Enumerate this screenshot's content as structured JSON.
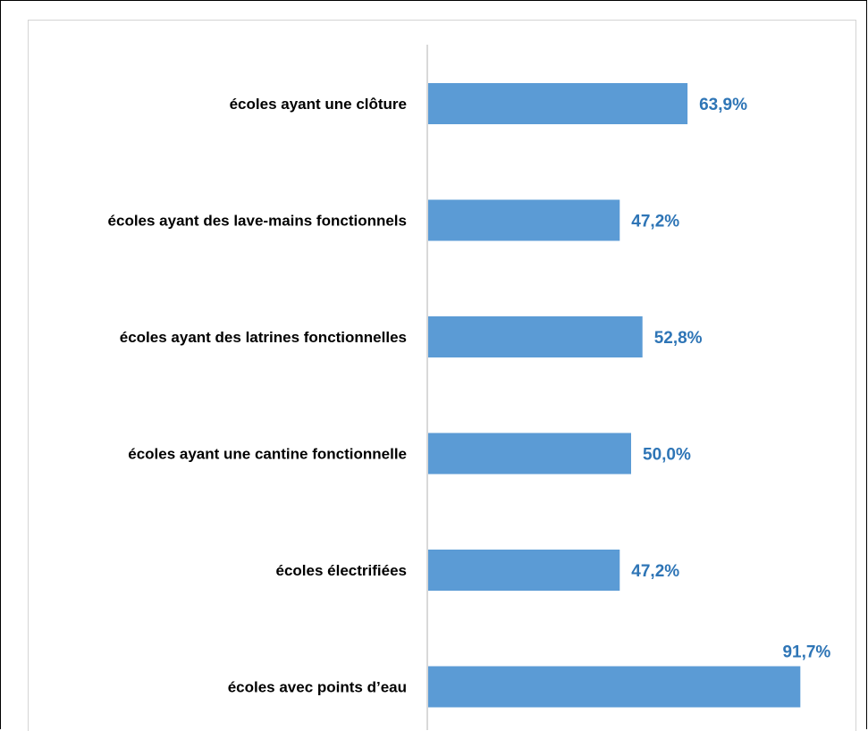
{
  "chart_data": {
    "type": "bar",
    "orientation": "horizontal",
    "categories": [
      "écoles ayant une clôture",
      "écoles ayant des lave-mains fonctionnels",
      "écoles ayant des latrines fonctionnelles",
      "écoles ayant une cantine fonctionnelle",
      "écoles électrifiées",
      "écoles avec points d’eau"
    ],
    "values": [
      63.9,
      47.2,
      52.8,
      50.0,
      47.2,
      91.7
    ],
    "value_labels": [
      "63,9%",
      "47,2%",
      "52,8%",
      "50,0%",
      "47,2%",
      "91,7%"
    ],
    "unit": "%",
    "xlim": [
      0,
      100
    ],
    "title": "",
    "xlabel": "",
    "ylabel": "",
    "grid": false,
    "legend": "none",
    "colors": {
      "bar": "#5b9bd5",
      "value_label": "#2e75b6",
      "axis": "#d9d9d9"
    }
  }
}
